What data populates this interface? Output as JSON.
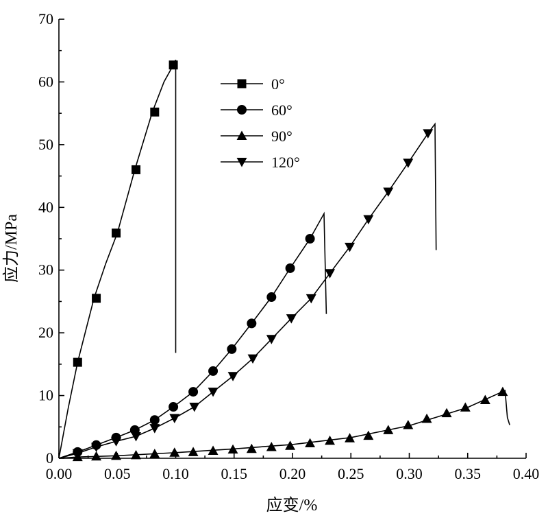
{
  "chart_data": {
    "type": "line",
    "title": "",
    "xlabel": "应变/%",
    "ylabel": "应力/MPa",
    "xlim": [
      0,
      0.4
    ],
    "ylim": [
      0,
      70
    ],
    "xticks": [
      "0.00",
      "0.05",
      "0.10",
      "0.15",
      "0.20",
      "0.25",
      "0.30",
      "0.35",
      "0.40"
    ],
    "yticks": [
      "0",
      "10",
      "20",
      "30",
      "40",
      "50",
      "60",
      "70"
    ],
    "grid": false,
    "legend": {
      "position": "top-center"
    },
    "series": [
      {
        "name": "0°",
        "marker": "square",
        "line": [
          [
            0,
            0
          ],
          [
            0.008,
            8
          ],
          [
            0.016,
            15.3
          ],
          [
            0.03,
            25.5
          ],
          [
            0.04,
            31
          ],
          [
            0.05,
            35.9
          ],
          [
            0.065,
            46
          ],
          [
            0.08,
            55.2
          ],
          [
            0.09,
            60
          ],
          [
            0.098,
            62.7
          ],
          [
            0.1,
            63.5
          ],
          [
            0.1,
            16.8
          ]
        ],
        "markers": [
          [
            0.016,
            15.3
          ],
          [
            0.032,
            25.5
          ],
          [
            0.049,
            35.9
          ],
          [
            0.066,
            46
          ],
          [
            0.082,
            55.2
          ],
          [
            0.098,
            62.7
          ]
        ]
      },
      {
        "name": "60°",
        "marker": "circle",
        "line": [
          [
            0,
            0
          ],
          [
            0.016,
            1.0
          ],
          [
            0.032,
            2.1
          ],
          [
            0.049,
            3.3
          ],
          [
            0.065,
            4.5
          ],
          [
            0.082,
            6.1
          ],
          [
            0.098,
            8.2
          ],
          [
            0.115,
            10.6
          ],
          [
            0.132,
            13.9
          ],
          [
            0.148,
            17.4
          ],
          [
            0.165,
            21.5
          ],
          [
            0.182,
            25.7
          ],
          [
            0.198,
            30.3
          ],
          [
            0.215,
            35.0
          ],
          [
            0.227,
            39.0
          ],
          [
            0.229,
            23.0
          ]
        ],
        "markers": [
          [
            0.016,
            1.0
          ],
          [
            0.032,
            2.1
          ],
          [
            0.049,
            3.3
          ],
          [
            0.065,
            4.5
          ],
          [
            0.082,
            6.1
          ],
          [
            0.098,
            8.2
          ],
          [
            0.115,
            10.6
          ],
          [
            0.132,
            13.9
          ],
          [
            0.148,
            17.4
          ],
          [
            0.165,
            21.5
          ],
          [
            0.182,
            25.7
          ],
          [
            0.198,
            30.3
          ],
          [
            0.215,
            35.0
          ]
        ]
      },
      {
        "name": "90°",
        "marker": "triangle-up",
        "line": [
          [
            0,
            0
          ],
          [
            0.016,
            0.2
          ],
          [
            0.05,
            0.4
          ],
          [
            0.1,
            0.9
          ],
          [
            0.15,
            1.5
          ],
          [
            0.2,
            2.2
          ],
          [
            0.25,
            3.3
          ],
          [
            0.3,
            5.2
          ],
          [
            0.35,
            8.1
          ],
          [
            0.382,
            10.8
          ],
          [
            0.384,
            6.5
          ],
          [
            0.386,
            5.3
          ]
        ],
        "markers": [
          [
            0.016,
            0.2
          ],
          [
            0.032,
            0.3
          ],
          [
            0.049,
            0.4
          ],
          [
            0.066,
            0.5
          ],
          [
            0.082,
            0.7
          ],
          [
            0.099,
            0.9
          ],
          [
            0.115,
            1.0
          ],
          [
            0.132,
            1.2
          ],
          [
            0.149,
            1.4
          ],
          [
            0.165,
            1.5
          ],
          [
            0.182,
            1.8
          ],
          [
            0.198,
            2.0
          ],
          [
            0.215,
            2.4
          ],
          [
            0.232,
            2.8
          ],
          [
            0.249,
            3.2
          ],
          [
            0.265,
            3.6
          ],
          [
            0.282,
            4.5
          ],
          [
            0.299,
            5.3
          ],
          [
            0.315,
            6.3
          ],
          [
            0.332,
            7.2
          ],
          [
            0.348,
            8.1
          ],
          [
            0.365,
            9.3
          ],
          [
            0.38,
            10.6
          ]
        ]
      },
      {
        "name": "120°",
        "marker": "triangle-down",
        "line": [
          [
            0,
            0
          ],
          [
            0.016,
            0.8
          ],
          [
            0.032,
            1.8
          ],
          [
            0.049,
            2.7
          ],
          [
            0.066,
            3.5
          ],
          [
            0.082,
            4.8
          ],
          [
            0.099,
            6.4
          ],
          [
            0.116,
            8.2
          ],
          [
            0.132,
            10.6
          ],
          [
            0.149,
            13.1
          ],
          [
            0.166,
            15.9
          ],
          [
            0.182,
            19.0
          ],
          [
            0.199,
            22.3
          ],
          [
            0.216,
            25.5
          ],
          [
            0.232,
            29.5
          ],
          [
            0.249,
            33.7
          ],
          [
            0.265,
            38.1
          ],
          [
            0.282,
            42.5
          ],
          [
            0.299,
            47.1
          ],
          [
            0.316,
            51.8
          ],
          [
            0.322,
            53.3
          ],
          [
            0.323,
            33.2
          ]
        ],
        "markers": [
          [
            0.016,
            0.8
          ],
          [
            0.032,
            1.8
          ],
          [
            0.049,
            2.7
          ],
          [
            0.066,
            3.5
          ],
          [
            0.082,
            4.8
          ],
          [
            0.099,
            6.4
          ],
          [
            0.116,
            8.2
          ],
          [
            0.132,
            10.6
          ],
          [
            0.149,
            13.1
          ],
          [
            0.166,
            15.9
          ],
          [
            0.182,
            19.0
          ],
          [
            0.199,
            22.3
          ],
          [
            0.216,
            25.5
          ],
          [
            0.232,
            29.5
          ],
          [
            0.249,
            33.7
          ],
          [
            0.265,
            38.1
          ],
          [
            0.282,
            42.5
          ],
          [
            0.299,
            47.1
          ],
          [
            0.316,
            51.8
          ]
        ]
      }
    ]
  }
}
